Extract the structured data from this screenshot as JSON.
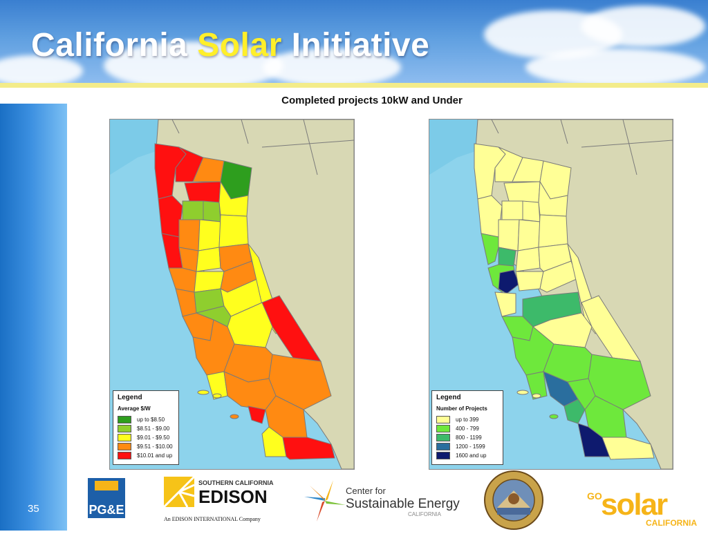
{
  "header": {
    "title_part1": "California ",
    "title_highlight": "Solar",
    "title_part2": " Initiative"
  },
  "slide_number": "35",
  "subtitle": "Completed projects 10kW and Under",
  "map_left": {
    "legend_title": "Legend",
    "legend_subtitle": "Average $/W",
    "items": [
      {
        "label": "up to $8.50",
        "color": "#2e9e1e"
      },
      {
        "label": "$8.51 - $9.00",
        "color": "#8fce2e"
      },
      {
        "label": "$9.01 - $9.50",
        "color": "#ffff1e"
      },
      {
        "label": "$9.51 - $10.00",
        "color": "#ff8a12"
      },
      {
        "label": "$10.01 and up",
        "color": "#ff1010"
      }
    ]
  },
  "map_right": {
    "legend_title": "Legend",
    "legend_subtitle": "Number of Projects",
    "items": [
      {
        "label": "up to 399",
        "color": "#ffff96"
      },
      {
        "label": "400 - 799",
        "color": "#6ee83c"
      },
      {
        "label": "800 - 1199",
        "color": "#3dba6a"
      },
      {
        "label": "1200 - 1599",
        "color": "#2a6e9e"
      },
      {
        "label": "1600 and up",
        "color": "#0e1a6e"
      }
    ]
  },
  "logos": {
    "pge": "PG&E",
    "sce_top": "SOUTHERN CALIFORNIA",
    "sce_main": "EDISON",
    "sce_sub": "An EDISON INTERNATIONAL Company",
    "cse_line1": "Center for",
    "cse_line2": "Sustainable Energy",
    "cse_line3": "CALIFORNIA",
    "puc_seal": "PUBLIC UTILITIES COMMISSION · STATE OF CALIFORNIA",
    "gosolar_go": "GO",
    "gosolar_main": "solar",
    "gosolar_sub": "CALIFORNIA"
  },
  "colors": {
    "ocean": "#7ccbe8",
    "land": "#d8d8b4",
    "border": "#7a7a7a"
  }
}
